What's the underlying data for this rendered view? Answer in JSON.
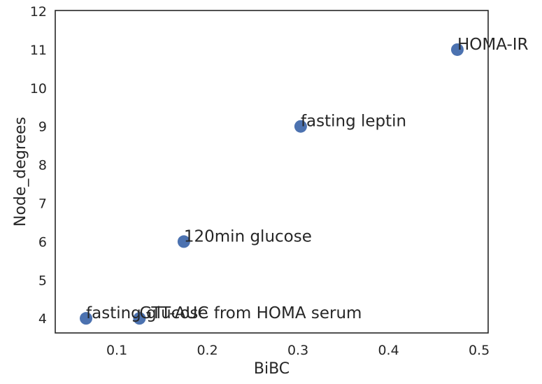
{
  "chart_data": {
    "type": "scatter",
    "title": "",
    "xlabel": "BiBC",
    "ylabel": "Node_degrees",
    "xlim": [
      0.032,
      0.51
    ],
    "ylim": [
      3.62,
      12.02
    ],
    "xticks": [
      "0.1",
      "0.2",
      "0.3",
      "0.4",
      "0.5"
    ],
    "yticks": [
      "4",
      "5",
      "6",
      "7",
      "8",
      "9",
      "10",
      "11",
      "12"
    ],
    "grid": false,
    "legend": "none",
    "point_color": "#4c72b0",
    "points": [
      {
        "x": 0.066,
        "y": 4,
        "label": "fasting glucose"
      },
      {
        "x": 0.125,
        "y": 4,
        "label": "GTT-AUC from HOMA serum"
      },
      {
        "x": 0.174,
        "y": 6,
        "label": "120min glucose"
      },
      {
        "x": 0.303,
        "y": 9,
        "label": "fasting leptin"
      },
      {
        "x": 0.476,
        "y": 11,
        "label": "HOMA-IR"
      }
    ]
  }
}
